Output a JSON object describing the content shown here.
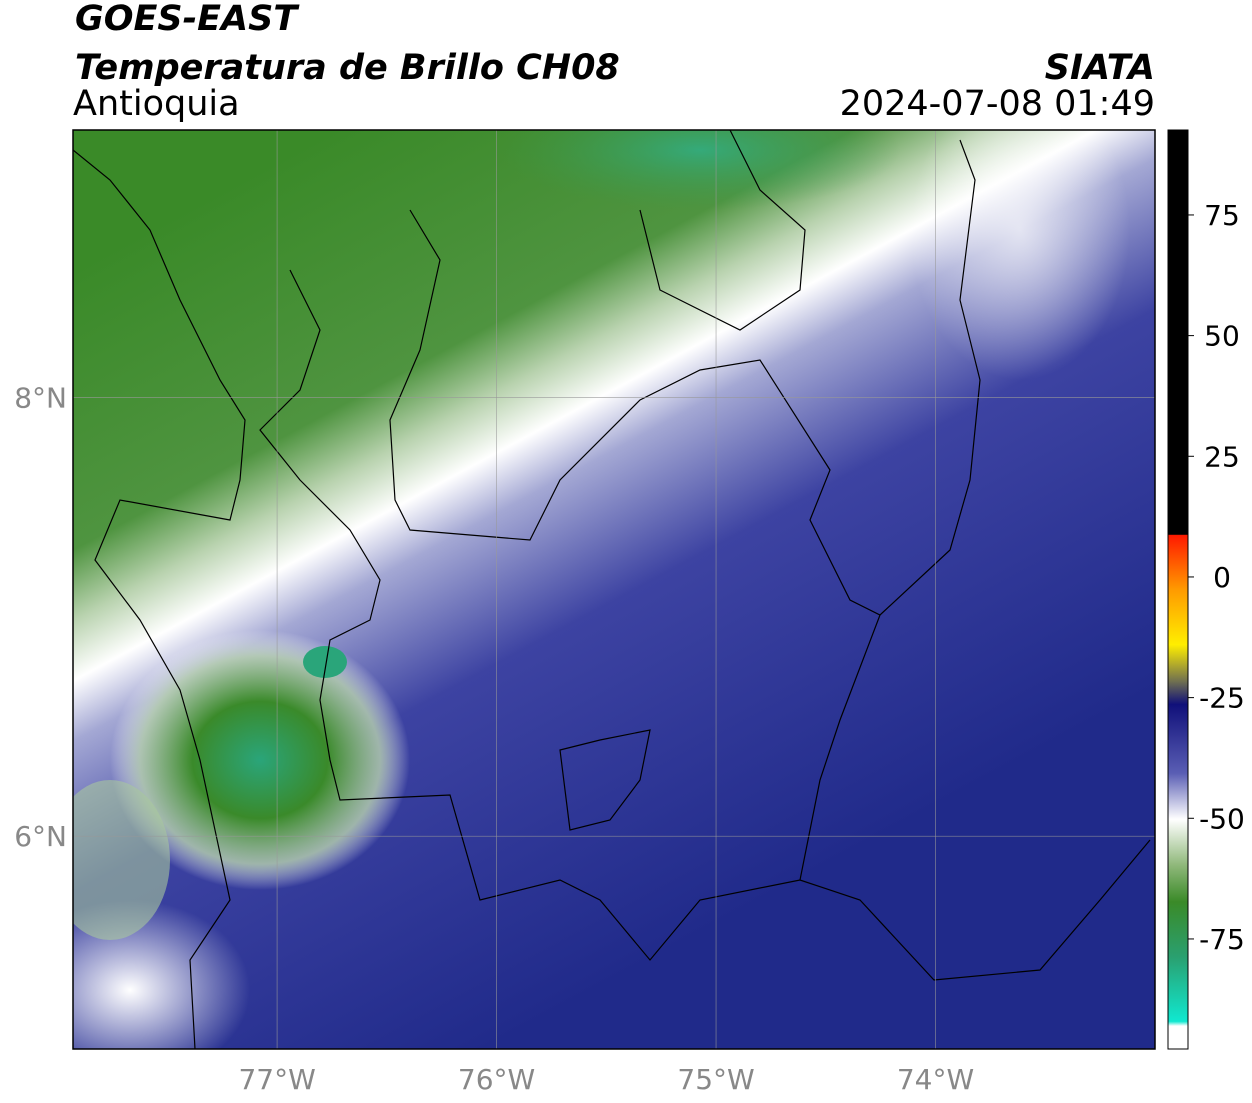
{
  "header": {
    "satellite": "GOES-EAST",
    "product": "Temperatura de Brillo CH08",
    "region": "Antioquia",
    "agency": "SIATA",
    "timestamp": "2024-07-08 01:49"
  },
  "map": {
    "lonlim": [
      -77.93,
      -73.0
    ],
    "latlim": [
      5.03,
      9.22
    ],
    "lonticks": [
      {
        "value": -77,
        "label": "77°W"
      },
      {
        "value": -76,
        "label": "76°W"
      },
      {
        "value": -75,
        "label": "75°W"
      },
      {
        "value": -74,
        "label": "74°W"
      }
    ],
    "latticks": [
      {
        "value": 8,
        "label": "8°N"
      },
      {
        "value": 6,
        "label": "6°N"
      }
    ]
  },
  "colorbar": {
    "lim": [
      -97.8,
      92.6
    ],
    "ticks": [
      75,
      50,
      25,
      0,
      -25,
      -50,
      -75
    ]
  }
}
